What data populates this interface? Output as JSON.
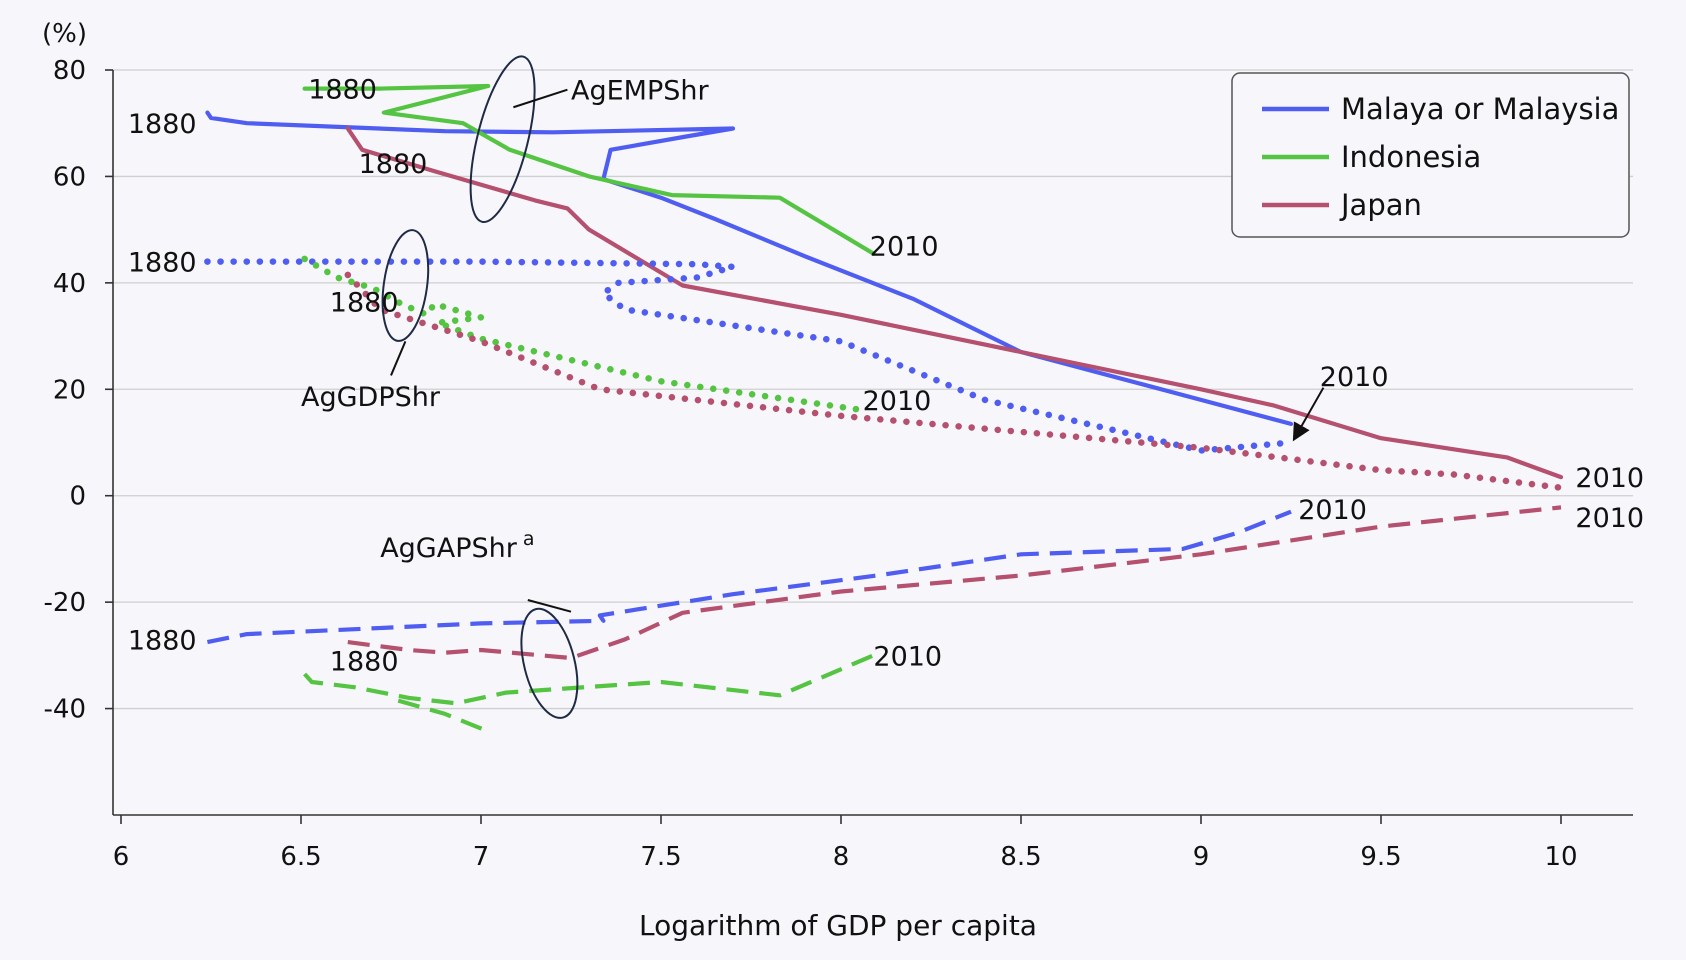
{
  "chart_data": {
    "type": "line",
    "title": "",
    "xlabel": "Logarithm of GDP per capita",
    "ylabel": "(%)",
    "xlim": [
      6,
      10.2
    ],
    "ylim": [
      -60,
      80
    ],
    "x_ticks": [
      "6",
      "6.5",
      "7",
      "7.5",
      "8",
      "8.5",
      "9",
      "9.5",
      "10"
    ],
    "y_ticks": [
      "80",
      "60",
      "40",
      "20",
      "0",
      "-20",
      "-40"
    ],
    "grid": true,
    "legend_position": "top-right",
    "legend": [
      {
        "label": "Malaya or Malaysia",
        "color": "#4f5ef0"
      },
      {
        "label": "Indonesia",
        "color": "#55c442"
      },
      {
        "label": "Japan",
        "color": "#b5506e"
      }
    ],
    "series": [
      {
        "country": "Malaya or Malaysia",
        "measure": "AgEMPShr",
        "style": "solid",
        "color": "#4f5ef0",
        "points": [
          [
            6.24,
            72
          ],
          [
            6.25,
            71
          ],
          [
            6.35,
            70
          ],
          [
            6.9,
            68.5
          ],
          [
            7.2,
            68.3
          ],
          [
            7.7,
            69
          ],
          [
            7.57,
            67.5
          ],
          [
            7.36,
            65
          ],
          [
            7.34,
            59.5
          ],
          [
            7.5,
            56
          ],
          [
            7.65,
            52
          ],
          [
            7.9,
            45
          ],
          [
            8.2,
            37
          ],
          [
            8.5,
            27
          ],
          [
            9.0,
            18
          ],
          [
            9.25,
            13.5
          ]
        ]
      },
      {
        "country": "Indonesia",
        "measure": "AgEMPShr",
        "style": "solid",
        "color": "#55c442",
        "points": [
          [
            6.51,
            76.5
          ],
          [
            6.72,
            76.5
          ],
          [
            7.02,
            77
          ],
          [
            6.73,
            72
          ],
          [
            6.95,
            70
          ],
          [
            7.08,
            65
          ],
          [
            7.3,
            60
          ],
          [
            7.53,
            56.5
          ],
          [
            7.83,
            56
          ],
          [
            8.09,
            45.5
          ]
        ]
      },
      {
        "country": "Japan",
        "measure": "AgEMPShr",
        "style": "solid",
        "color": "#b5506e",
        "points": [
          [
            6.63,
            69
          ],
          [
            6.67,
            65
          ],
          [
            6.87,
            61
          ],
          [
            7.15,
            55.5
          ],
          [
            7.24,
            54
          ],
          [
            7.3,
            50
          ],
          [
            7.56,
            39.5
          ],
          [
            8.0,
            34
          ],
          [
            8.5,
            27
          ],
          [
            9.0,
            20
          ],
          [
            9.2,
            17
          ],
          [
            9.5,
            10.8
          ],
          [
            9.85,
            7.2
          ],
          [
            10.0,
            3.5
          ]
        ]
      },
      {
        "country": "Malaya or Malaysia",
        "measure": "AgGDPShr",
        "style": "dotted",
        "color": "#4f5ef0",
        "points": [
          [
            6.24,
            44
          ],
          [
            7.0,
            44
          ],
          [
            7.6,
            43.5
          ],
          [
            7.7,
            43
          ],
          [
            7.6,
            41
          ],
          [
            7.38,
            40
          ],
          [
            7.34,
            38
          ],
          [
            7.4,
            35
          ],
          [
            8.0,
            29
          ],
          [
            8.4,
            18
          ],
          [
            9.0,
            8.5
          ],
          [
            9.25,
            10
          ]
        ]
      },
      {
        "country": "Indonesia",
        "measure": "AgGDPShr",
        "style": "dotted",
        "color": "#55c442",
        "points": [
          [
            6.51,
            44.5
          ],
          [
            6.6,
            41
          ],
          [
            6.7,
            39
          ],
          [
            6.78,
            36
          ],
          [
            6.85,
            34
          ],
          [
            6.87,
            36
          ],
          [
            6.95,
            34.5
          ],
          [
            7.0,
            33.5
          ],
          [
            6.88,
            32.5
          ],
          [
            7.0,
            29.5
          ],
          [
            7.5,
            21.5
          ],
          [
            8.07,
            16
          ]
        ]
      },
      {
        "country": "Japan",
        "measure": "AgGDPShr",
        "style": "dotted",
        "color": "#b5506e",
        "points": [
          [
            6.63,
            41.5
          ],
          [
            6.72,
            35
          ],
          [
            7.0,
            29
          ],
          [
            7.33,
            20
          ],
          [
            8.0,
            15
          ],
          [
            8.5,
            12
          ],
          [
            9.0,
            9
          ],
          [
            9.5,
            4.8
          ],
          [
            9.7,
            4
          ],
          [
            10.0,
            1.5
          ]
        ]
      },
      {
        "country": "Malaya or Malaysia",
        "measure": "AgGAPShr",
        "style": "dashed",
        "color": "#4f5ef0",
        "points": [
          [
            6.24,
            -27.5
          ],
          [
            6.35,
            -26
          ],
          [
            7.0,
            -24
          ],
          [
            7.34,
            -23.5
          ],
          [
            7.33,
            -22.5
          ],
          [
            7.7,
            -18.5
          ],
          [
            8.1,
            -15
          ],
          [
            8.5,
            -11
          ],
          [
            8.95,
            -10
          ],
          [
            9.1,
            -7
          ],
          [
            9.25,
            -3
          ]
        ]
      },
      {
        "country": "Indonesia",
        "measure": "AgGAPShr",
        "style": "dashed",
        "color": "#55c442",
        "points": [
          [
            6.51,
            -33.5
          ],
          [
            6.53,
            -35
          ],
          [
            6.65,
            -36
          ],
          [
            6.8,
            -38
          ],
          [
            6.93,
            -39
          ],
          [
            7.07,
            -37
          ],
          [
            7.5,
            -35
          ],
          [
            7.83,
            -37.5
          ],
          [
            8.09,
            -30
          ]
        ]
      },
      {
        "country": "Indonesia",
        "measure": "AgGAPShr",
        "style": "dashed",
        "color": "#55c442",
        "points": [
          [
            6.77,
            -38.5
          ],
          [
            6.9,
            -41
          ],
          [
            7.01,
            -44
          ]
        ]
      },
      {
        "country": "Japan",
        "measure": "AgGAPShr",
        "style": "dashed",
        "color": "#b5506e",
        "points": [
          [
            6.63,
            -27.5
          ],
          [
            6.8,
            -29
          ],
          [
            6.9,
            -29.5
          ],
          [
            7.0,
            -29
          ],
          [
            7.25,
            -30.5
          ],
          [
            7.4,
            -27
          ],
          [
            7.56,
            -22
          ],
          [
            8.0,
            -18
          ],
          [
            8.5,
            -15
          ],
          [
            9.0,
            -11
          ],
          [
            9.5,
            -5.8
          ],
          [
            10.0,
            -2.2
          ]
        ]
      }
    ],
    "annotations": [
      {
        "text": "1880",
        "x": 6.52,
        "y": 76.5
      },
      {
        "text": "1880",
        "x": 6.21,
        "y": 70
      },
      {
        "text": "1880",
        "x": 6.66,
        "y": 62.5
      },
      {
        "text": "1880",
        "x": 6.21,
        "y": 44
      },
      {
        "text": "1880",
        "x": 6.58,
        "y": 36.5
      },
      {
        "text": "1880",
        "x": 6.21,
        "y": -27
      },
      {
        "text": "1880",
        "x": 6.58,
        "y": -31
      },
      {
        "text": "2010",
        "x": 8.08,
        "y": 47
      },
      {
        "text": "2010",
        "x": 9.33,
        "y": 22.5
      },
      {
        "text": "2010",
        "x": 8.06,
        "y": 18
      },
      {
        "text": "2010",
        "x": 10.04,
        "y": 3.5
      },
      {
        "text": "2010",
        "x": 10.04,
        "y": -4
      },
      {
        "text": "2010",
        "x": 9.27,
        "y": -2.5
      },
      {
        "text": "2010",
        "x": 8.09,
        "y": -30
      },
      {
        "text": "AgEMPShr",
        "x": 7.25,
        "y": 76.3
      },
      {
        "text": "AgGDPShr",
        "x": 6.5,
        "y": 18.7
      },
      {
        "text": "AgGAPShr",
        "x": 6.72,
        "y": -9.6,
        "superscript": "a"
      }
    ],
    "ellipses": [
      {
        "cx": 7.06,
        "cy": 67,
        "rx": 0.07,
        "ry": 16,
        "rotate": 14
      },
      {
        "cx": 6.79,
        "cy": 39.5,
        "rx": 0.06,
        "ry": 10.5,
        "rotate": 8
      },
      {
        "cx": 7.19,
        "cy": -31.5,
        "rx": 0.07,
        "ry": 10.5,
        "rotate": -14
      }
    ],
    "leaders": [
      {
        "from": [
          7.24,
          76.3
        ],
        "to": [
          7.09,
          73
        ]
      },
      {
        "from": [
          6.75,
          22.6
        ],
        "to": [
          6.79,
          29
        ]
      },
      {
        "from": [
          7.13,
          -19.6
        ],
        "to": [
          7.25,
          -21.8
        ]
      }
    ],
    "arrows": [
      {
        "from": [
          9.34,
          20.3
        ],
        "to": [
          9.26,
          10.8
        ]
      }
    ]
  }
}
